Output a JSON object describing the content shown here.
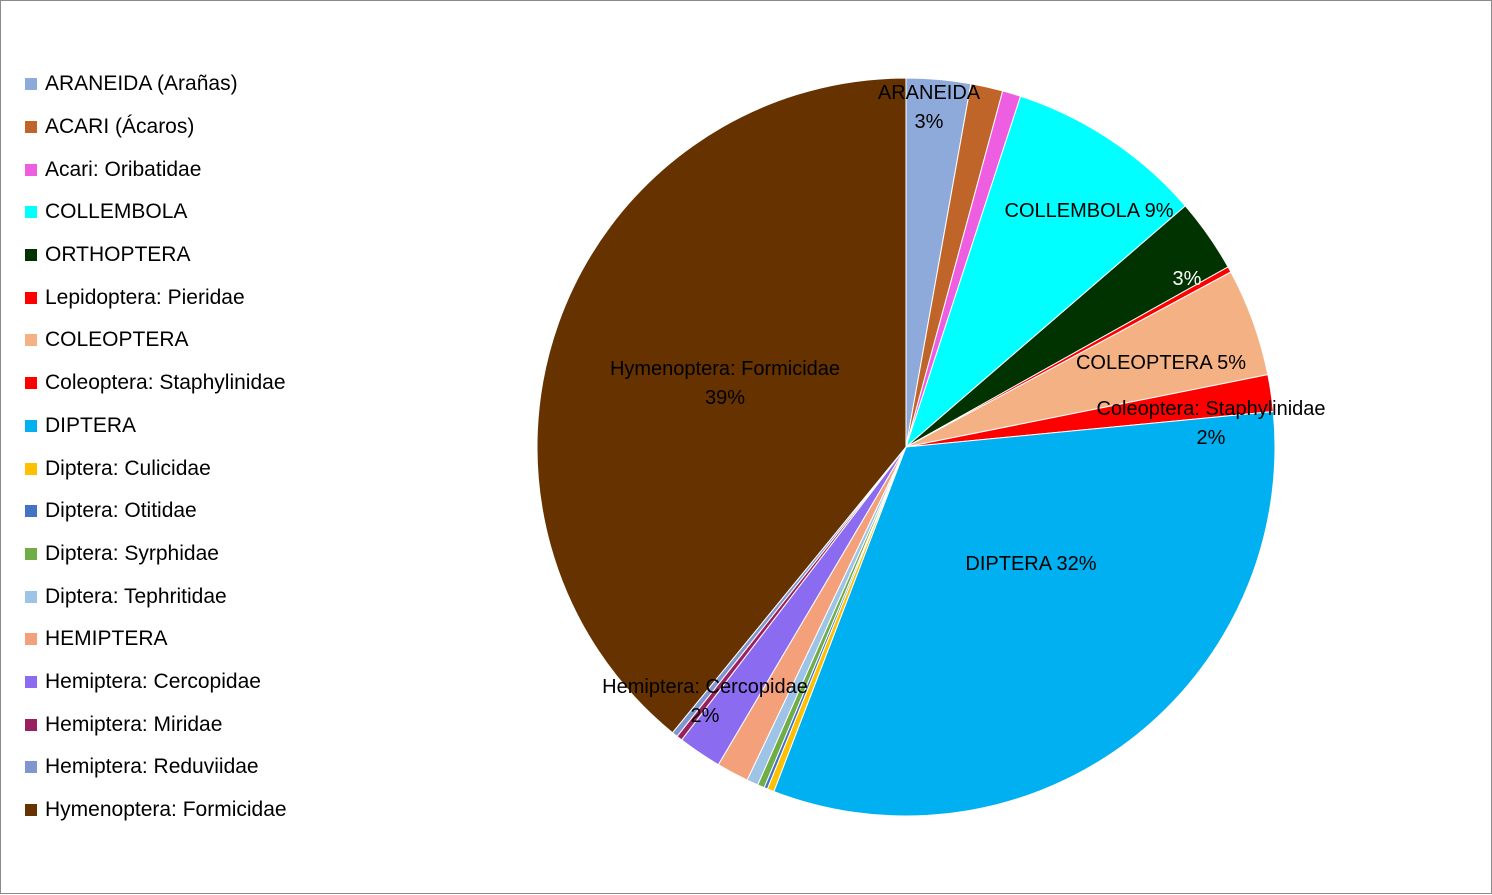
{
  "chart_data": {
    "type": "pie",
    "legend_position": "left",
    "series": [
      {
        "name": "ARANEIDA (Arañas)",
        "value": 2.8,
        "color": "#8eaadb"
      },
      {
        "name": "ACARI (Ácaros)",
        "value": 1.4,
        "color": "#c0652a"
      },
      {
        "name": "Acari: Oribatidae",
        "value": 0.8,
        "color": "#ee5ee0"
      },
      {
        "name": "COLLEMBOLA",
        "value": 8.6,
        "color": "#00ffff"
      },
      {
        "name": "ORTHOPTERA",
        "value": 3.2,
        "color": "#003300"
      },
      {
        "name": "Lepidoptera: Pieridae",
        "value": 0.25,
        "color": "#ff0000"
      },
      {
        "name": "COLEOPTERA",
        "value": 4.7,
        "color": "#f4b183"
      },
      {
        "name": "Coleoptera: Staphylinidae",
        "value": 1.6,
        "color": "#ff0000"
      },
      {
        "name": "DIPTERA",
        "value": 32.2,
        "color": "#00b0f0"
      },
      {
        "name": "Diptera: Culicidae",
        "value": 0.3,
        "color": "#ffc000"
      },
      {
        "name": "Diptera: Otitidae",
        "value": 0.15,
        "color": "#4472c4"
      },
      {
        "name": "Diptera: Syrphidae",
        "value": 0.3,
        "color": "#70ad47"
      },
      {
        "name": "Diptera: Tephritidae",
        "value": 0.5,
        "color": "#9dc3e6"
      },
      {
        "name": "HEMIPTERA",
        "value": 1.4,
        "color": "#f4a07a"
      },
      {
        "name": "Hemiptera: Cercopidae",
        "value": 1.9,
        "color": "#8b6cf0"
      },
      {
        "name": "Hemiptera: Miridae",
        "value": 0.25,
        "color": "#9b2060"
      },
      {
        "name": "Hemiptera: Reduviidae",
        "value": 0.25,
        "color": "#7f96d0"
      },
      {
        "name": "Hymenoptera: Formicidae",
        "value": 38.9,
        "color": "#663300"
      }
    ],
    "data_labels": [
      {
        "lines": [
          "ARANEIDA",
          "3%"
        ],
        "color": "#000000"
      },
      {
        "lines": [
          "COLLEMBOLA 9%"
        ],
        "color": "#000000"
      },
      {
        "lines": [
          "3%"
        ],
        "color": "#ffffff"
      },
      {
        "lines": [
          "COLEOPTERA 5%"
        ],
        "color": "#000000"
      },
      {
        "lines": [
          "Coleoptera: Staphylinidae",
          "2%"
        ],
        "color": "#000000"
      },
      {
        "lines": [
          "DIPTERA 32%"
        ],
        "color": "#000000"
      },
      {
        "lines": [
          "Hemiptera: Cercopidae",
          "2%"
        ],
        "color": "#000000"
      },
      {
        "lines": [
          "Hymenoptera: Formicidae",
          "39%"
        ],
        "color": "#000000"
      }
    ]
  }
}
